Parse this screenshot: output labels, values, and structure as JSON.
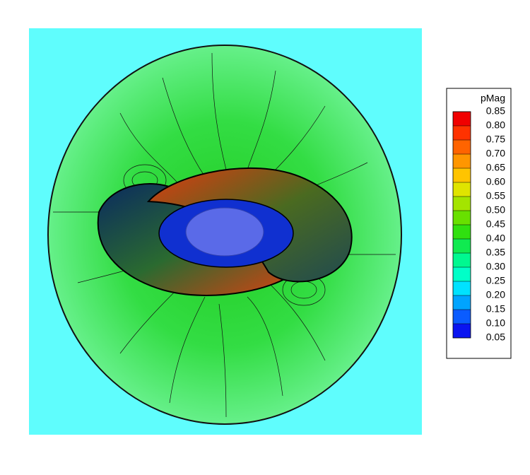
{
  "chart_data": {
    "type": "contour",
    "colorbar": {
      "title": "pMag",
      "ticks": [
        0.05,
        {
          "value": 0.1,
          "label": "0.10"
        },
        0.15,
        {
          "value": 0.2,
          "label": "0.20"
        },
        0.25,
        {
          "value": 0.3,
          "label": "0.30"
        },
        0.35,
        {
          "value": 0.4,
          "label": "0.40"
        },
        0.45,
        {
          "value": 0.5,
          "label": "0.50"
        },
        0.55,
        {
          "value": 0.6,
          "label": "0.60"
        },
        0.65,
        {
          "value": 0.7,
          "label": "0.70"
        },
        0.75,
        {
          "value": 0.8,
          "label": "0.80"
        },
        0.85
      ],
      "colors": [
        "#0a14f0",
        "#0a5cff",
        "#00a4ff",
        "#00e2ff",
        "#00ffc8",
        "#00f890",
        "#10ea50",
        "#30e010",
        "#68e000",
        "#a4e400",
        "#e0e400",
        "#ffc400",
        "#ff9600",
        "#ff6400",
        "#ff3200",
        "#f00000"
      ]
    }
  }
}
